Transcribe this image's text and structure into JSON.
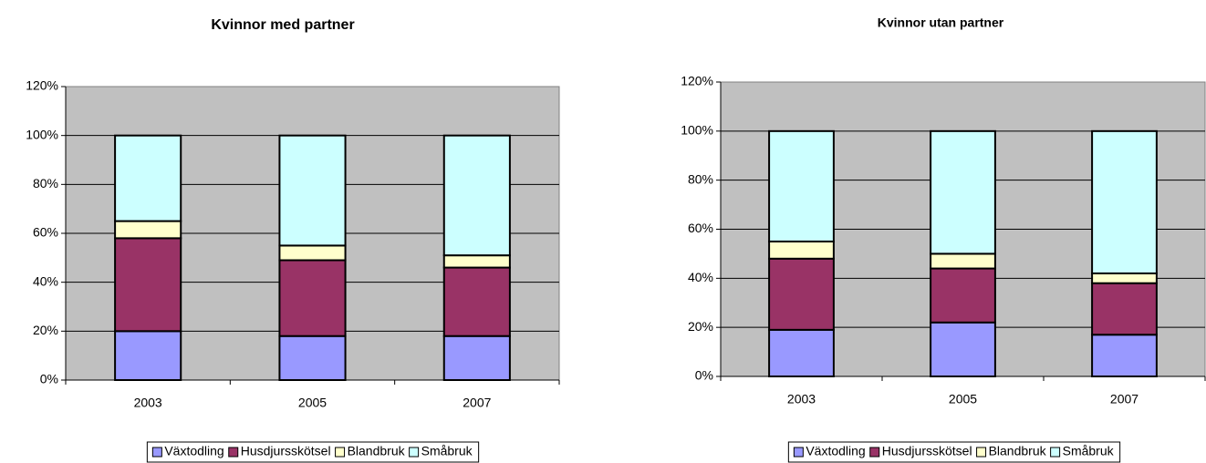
{
  "chart_data": [
    {
      "type": "stacked-bar",
      "title": "Kvinnor med partner",
      "categories": [
        "2003",
        "2005",
        "2007"
      ],
      "series": [
        {
          "name": "Växtodling",
          "color": "#9999ff",
          "values": [
            20,
            18,
            18
          ]
        },
        {
          "name": "Husdjursskötsel",
          "color": "#993366",
          "values": [
            38,
            31,
            28
          ]
        },
        {
          "name": "Blandbruk",
          "color": "#ffffcc",
          "values": [
            7,
            6,
            5
          ]
        },
        {
          "name": "Småbruk",
          "color": "#ccffff",
          "values": [
            35,
            45,
            49
          ]
        }
      ],
      "ylim": [
        0,
        120
      ],
      "yticks": [
        {
          "value": 0,
          "label": "0%"
        },
        {
          "value": 20,
          "label": "20%"
        },
        {
          "value": 40,
          "label": "40%"
        },
        {
          "value": 60,
          "label": "60%"
        },
        {
          "value": 80,
          "label": "80%"
        },
        {
          "value": 100,
          "label": "100%"
        },
        {
          "value": 120,
          "label": "120%"
        }
      ],
      "grid": true,
      "legend": "bottom"
    },
    {
      "type": "stacked-bar",
      "title": "Kvinnor utan partner",
      "categories": [
        "2003",
        "2005",
        "2007"
      ],
      "series": [
        {
          "name": "Växtodling",
          "color": "#9999ff",
          "values": [
            19,
            22,
            17
          ]
        },
        {
          "name": "Husdjursskötsel",
          "color": "#993366",
          "values": [
            29,
            22,
            21
          ]
        },
        {
          "name": "Blandbruk",
          "color": "#ffffcc",
          "values": [
            7,
            6,
            4
          ]
        },
        {
          "name": "Småbruk",
          "color": "#ccffff",
          "values": [
            45,
            50,
            58
          ]
        }
      ],
      "ylim": [
        0,
        120
      ],
      "yticks": [
        {
          "value": 0,
          "label": "0%"
        },
        {
          "value": 20,
          "label": "20%"
        },
        {
          "value": 40,
          "label": "40%"
        },
        {
          "value": 60,
          "label": "60%"
        },
        {
          "value": 80,
          "label": "80%"
        },
        {
          "value": 100,
          "label": "100%"
        },
        {
          "value": 120,
          "label": "120%"
        }
      ],
      "grid": true,
      "legend": "bottom"
    }
  ]
}
